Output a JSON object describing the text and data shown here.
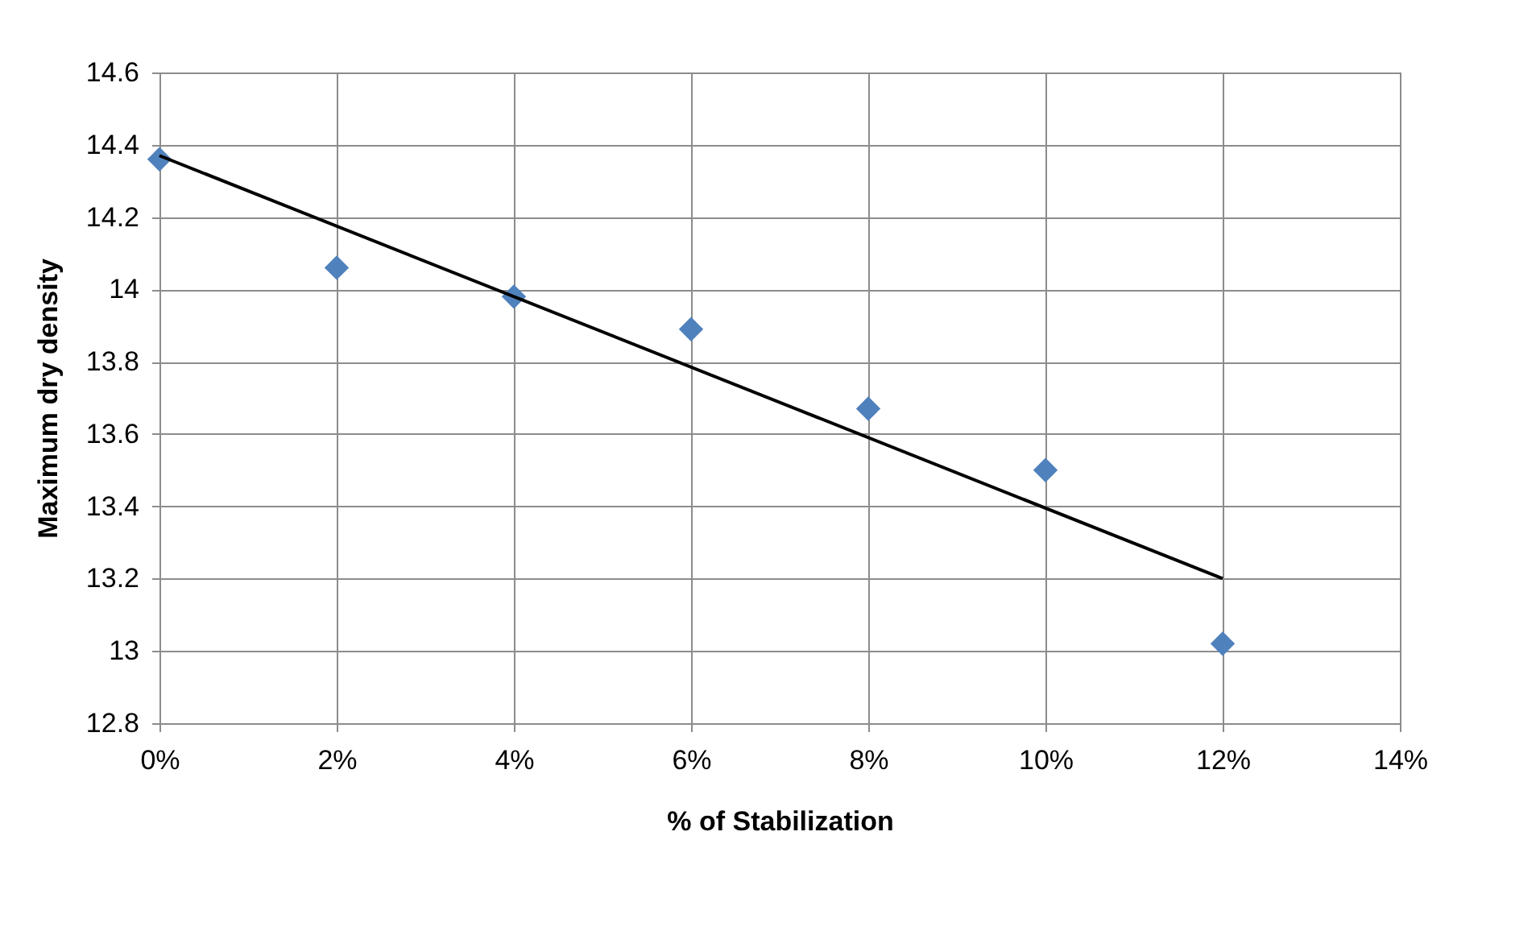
{
  "chart_data": {
    "type": "scatter",
    "xlabel": "% of Stabilization",
    "ylabel": "Maximum dry density",
    "x": [
      0,
      2,
      4,
      6,
      8,
      10,
      12
    ],
    "series": [
      {
        "color": "#4f81bd",
        "values": [
          14.36,
          14.06,
          13.98,
          13.89,
          13.67,
          13.5,
          13.02
        ],
        "marker": "diamond"
      },
      {
        "type": "line",
        "color": "#000000",
        "x": [
          0,
          12
        ],
        "values": [
          14.37,
          13.2
        ],
        "line_style": "solid"
      }
    ],
    "xlim": [
      0,
      14
    ],
    "xticks": [
      {
        "value": 0,
        "label": "0%"
      },
      {
        "value": 2,
        "label": "2%"
      },
      {
        "value": 4,
        "label": "4%"
      },
      {
        "value": 6,
        "label": "6%"
      },
      {
        "value": 8,
        "label": "8%"
      },
      {
        "value": 10,
        "label": "10%"
      },
      {
        "value": 12,
        "label": "12%"
      },
      {
        "value": 14,
        "label": "14%"
      }
    ],
    "ylim": [
      12.8,
      14.6
    ],
    "yticks": [
      12.8,
      13,
      13.2,
      13.4,
      13.6,
      13.8,
      14,
      14.2,
      14.4,
      14.6
    ],
    "grid": true
  }
}
